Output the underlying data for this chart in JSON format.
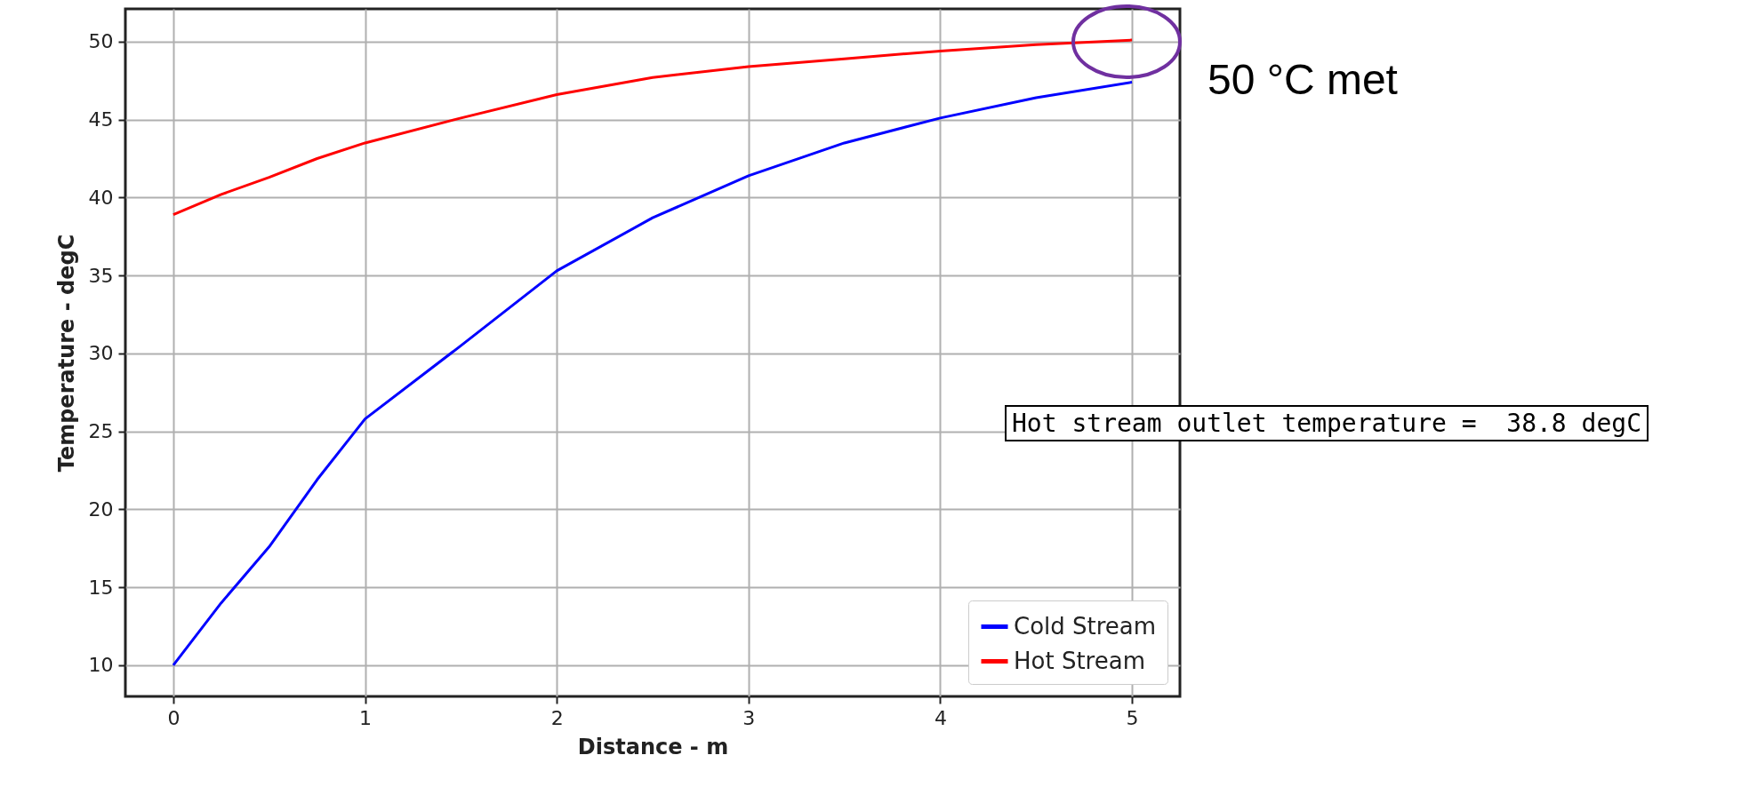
{
  "chart_data": {
    "type": "line",
    "xlabel": "Distance - m",
    "ylabel": "Temperature - degC",
    "x": [
      0,
      0.25,
      0.5,
      0.75,
      1,
      1.5,
      2,
      2.5,
      3,
      3.5,
      4,
      4.5,
      5
    ],
    "series": [
      {
        "name": "Cold Stream",
        "color": "#0000ff",
        "values": [
          10,
          14,
          17.6,
          21.9,
          25.8,
          30.5,
          35.3,
          38.7,
          41.4,
          43.5,
          45.1,
          46.4,
          47.4
        ]
      },
      {
        "name": "Hot Stream",
        "color": "#ff0000",
        "values": [
          38.9,
          40.2,
          41.3,
          42.5,
          43.5,
          45.1,
          46.6,
          47.7,
          48.4,
          48.9,
          49.4,
          49.8,
          50.1
        ]
      }
    ],
    "xlim": [
      -0.25,
      5.25
    ],
    "xticks": [
      0,
      1,
      2,
      3,
      4,
      5
    ],
    "ylim": [
      8,
      52.1
    ],
    "yticks": [
      10,
      15,
      20,
      25,
      30,
      35,
      40,
      45,
      50
    ],
    "grid": true,
    "legend": "bottom right",
    "line_style": "solid",
    "marker": "none",
    "annotations": [
      "50 °C met",
      "Hot stream outlet temperature =  38.8 degC"
    ]
  }
}
